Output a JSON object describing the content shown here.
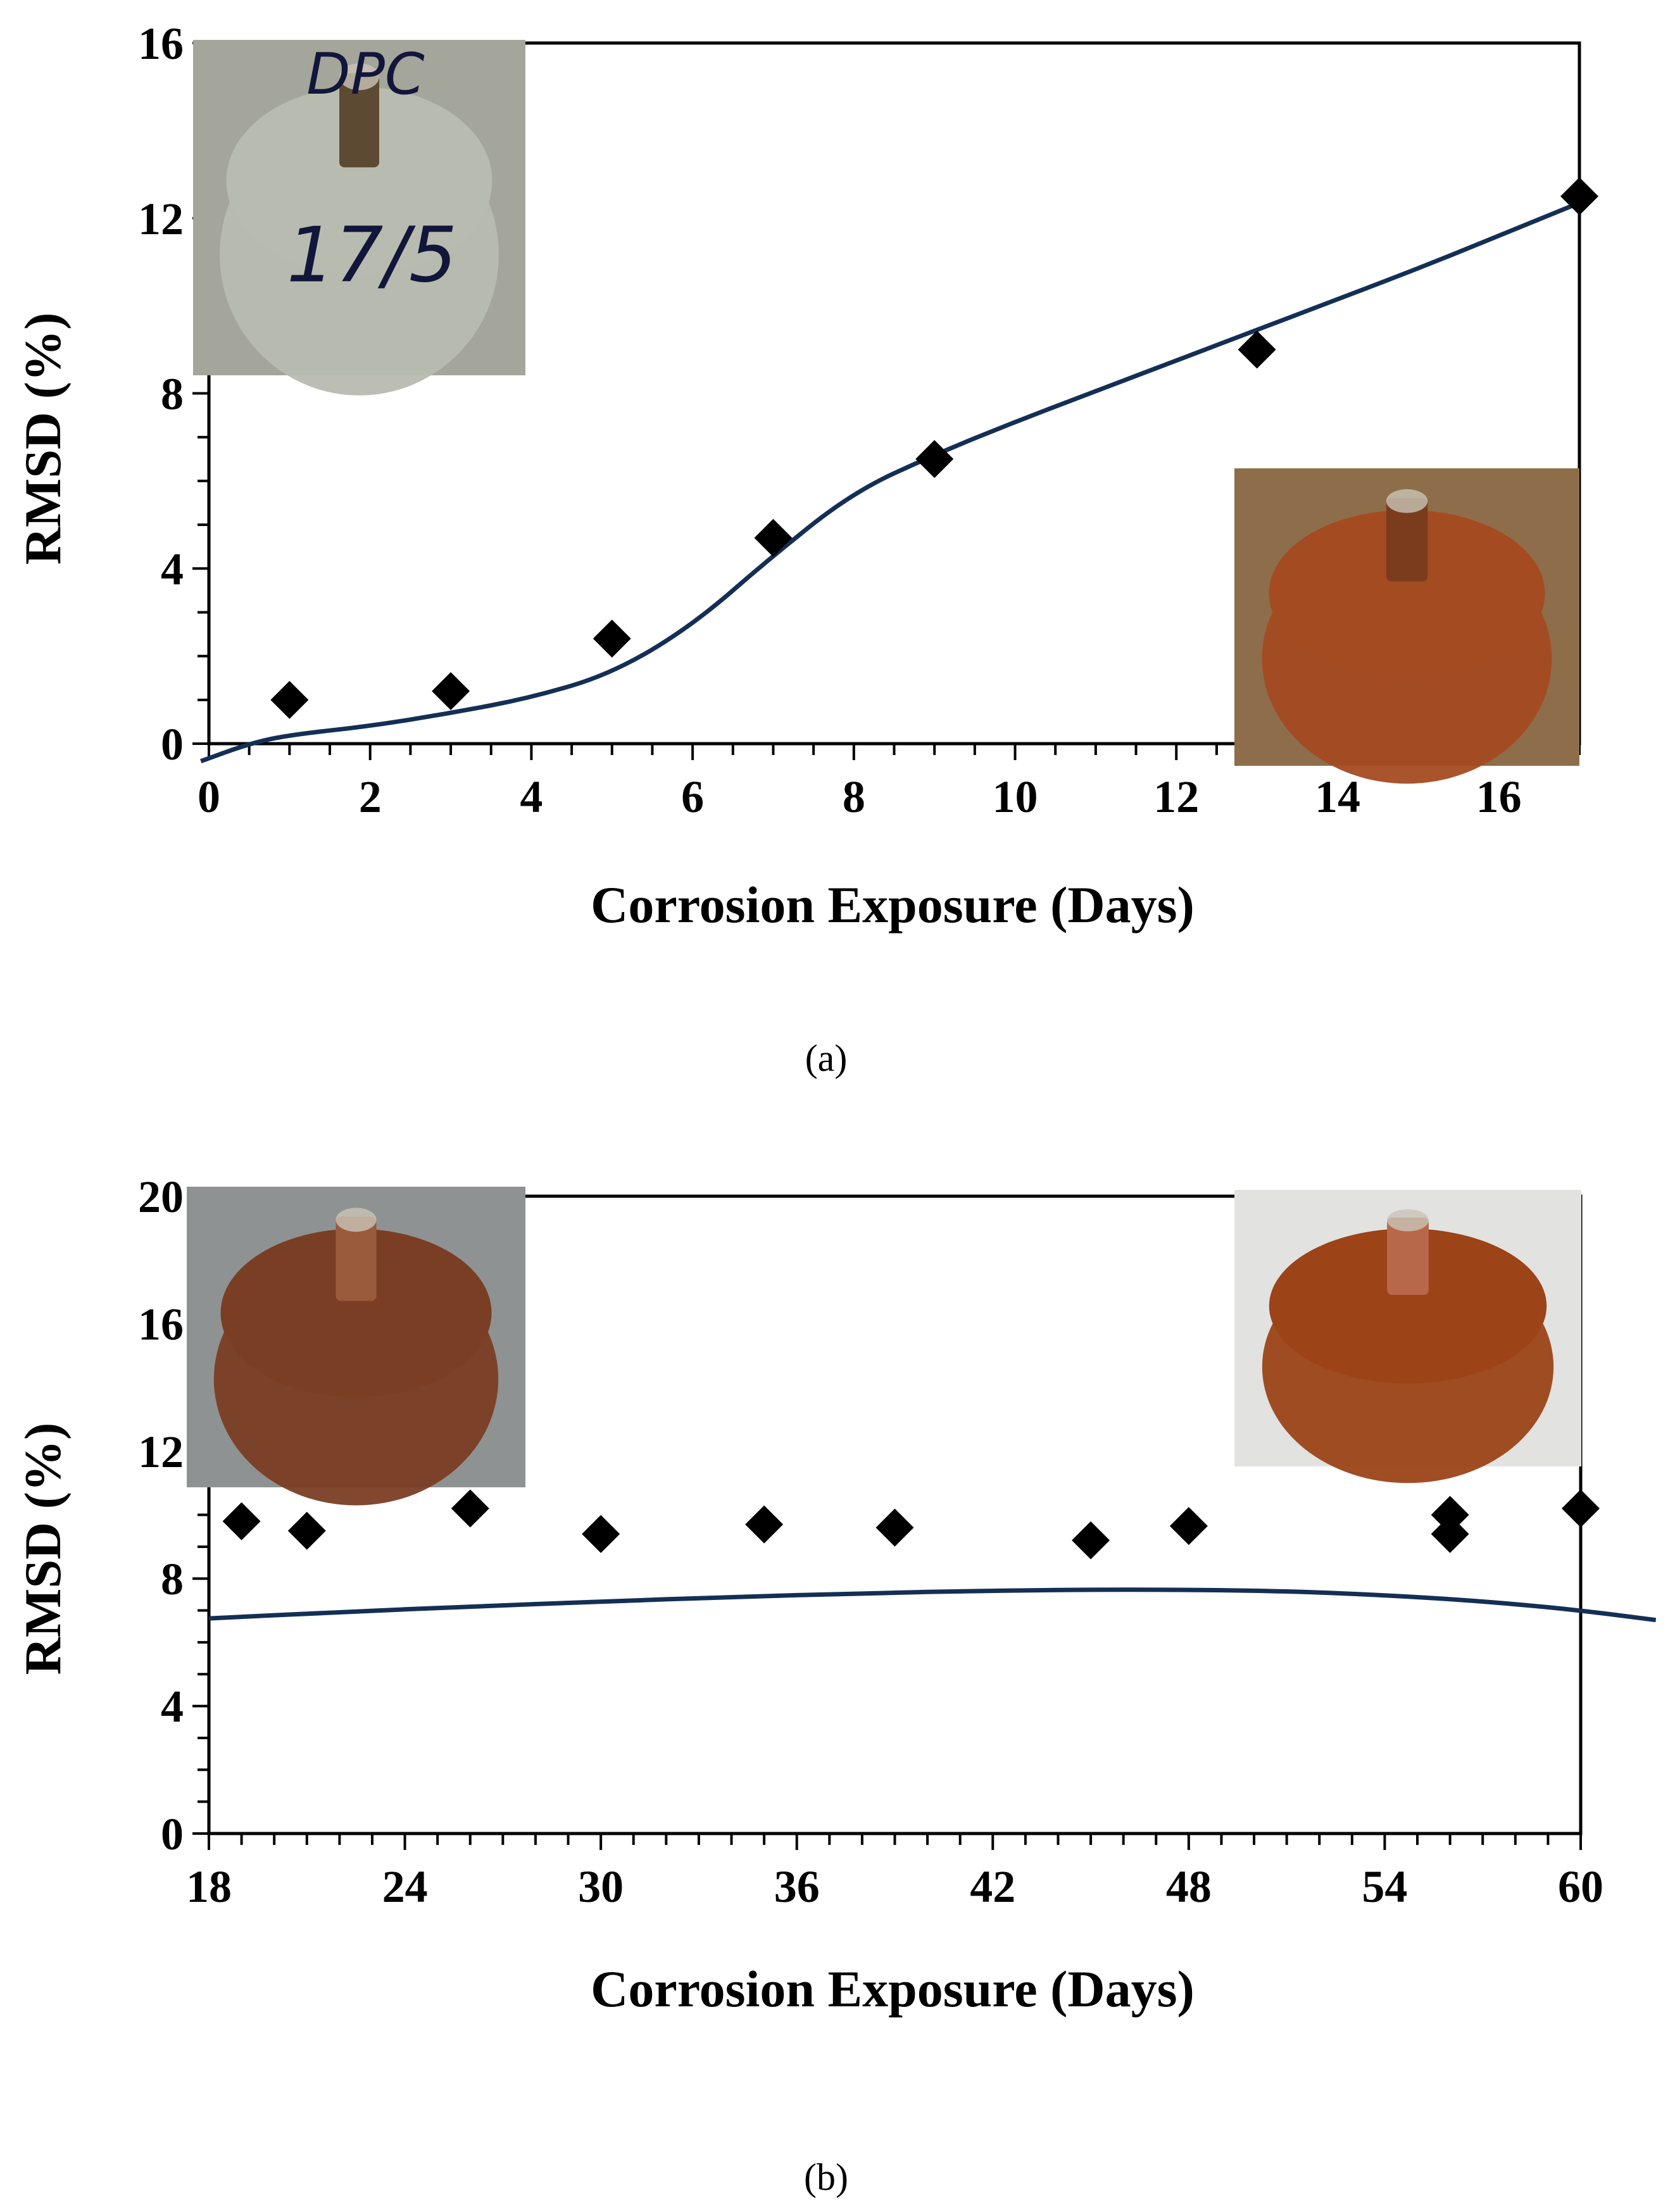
{
  "chart_data": [
    {
      "id": "a",
      "type": "scatter",
      "caption": "(a)",
      "xlabel": "Corrosion Exposure (Days)",
      "ylabel": "RMSD (%)",
      "xlim": [
        0,
        17
      ],
      "ylim": [
        0,
        16
      ],
      "xticks": [
        0,
        2,
        4,
        6,
        8,
        10,
        12,
        14,
        16
      ],
      "yticks": [
        0,
        4,
        8,
        12,
        16
      ],
      "x_minor_step": 0.5,
      "y_minor_step": 1,
      "marker_color": "#000000",
      "trend_color": "#142f55",
      "points": [
        {
          "x": 1,
          "y": 1.0
        },
        {
          "x": 3,
          "y": 1.2
        },
        {
          "x": 5,
          "y": 2.4
        },
        {
          "x": 7,
          "y": 4.7
        },
        {
          "x": 9,
          "y": 6.5
        },
        {
          "x": 13,
          "y": 9.0
        },
        {
          "x": 17,
          "y": 12.5
        }
      ],
      "trend": [
        [
          -0.1,
          -0.4
        ],
        [
          0.5,
          0.0
        ],
        [
          1,
          0.2
        ],
        [
          2,
          0.4
        ],
        [
          3,
          0.7
        ],
        [
          4,
          1.05
        ],
        [
          5,
          1.6
        ],
        [
          6,
          2.7
        ],
        [
          7,
          4.3
        ],
        [
          8,
          5.75
        ],
        [
          9,
          6.6
        ],
        [
          10,
          7.35
        ],
        [
          11,
          8.05
        ],
        [
          12,
          8.75
        ],
        [
          13,
          9.45
        ],
        [
          14,
          10.15
        ],
        [
          15,
          10.85
        ],
        [
          16,
          11.6
        ],
        [
          17,
          12.35
        ]
      ],
      "insets": [
        {
          "name": "inset-photo-opc-specimen",
          "label": "DPC 17/5",
          "bg": "#a4a59b",
          "top": "#b8bbb0",
          "bar": "#5d4a32"
        },
        {
          "name": "inset-photo-rusted-specimen",
          "label": "",
          "bg": "#8e6d4a",
          "top": "#a44b22",
          "bar": "#7a3c1c"
        }
      ]
    },
    {
      "id": "b",
      "type": "scatter",
      "caption": "(b)",
      "xlabel": "Corrosion Exposure (Days)",
      "ylabel": "RMSD (%)",
      "xlim": [
        18,
        60
      ],
      "ylim": [
        0,
        20
      ],
      "xticks": [
        18,
        24,
        30,
        36,
        42,
        48,
        54,
        60
      ],
      "yticks": [
        0,
        4,
        8,
        12,
        16,
        20
      ],
      "x_minor_step": 1,
      "y_minor_step": 1,
      "marker_color": "#000000",
      "trend_color": "#142f55",
      "points": [
        {
          "x": 19,
          "y": 9.8
        },
        {
          "x": 21,
          "y": 9.5
        },
        {
          "x": 26,
          "y": 10.2
        },
        {
          "x": 30,
          "y": 9.4
        },
        {
          "x": 35,
          "y": 9.7
        },
        {
          "x": 39,
          "y": 9.6
        },
        {
          "x": 45,
          "y": 9.2
        },
        {
          "x": 48,
          "y": 9.65
        },
        {
          "x": 56,
          "y": 10.0
        },
        {
          "x": 56,
          "y": 9.4
        },
        {
          "x": 60,
          "y": 10.2
        }
      ],
      "trend": [
        [
          18,
          6.75
        ],
        [
          22,
          6.95
        ],
        [
          26,
          7.12
        ],
        [
          30,
          7.28
        ],
        [
          34,
          7.42
        ],
        [
          38,
          7.54
        ],
        [
          42,
          7.62
        ],
        [
          46,
          7.66
        ],
        [
          50,
          7.63
        ],
        [
          53,
          7.53
        ],
        [
          56,
          7.36
        ],
        [
          58,
          7.2
        ],
        [
          60,
          7.0
        ],
        [
          62.3,
          6.7
        ]
      ],
      "insets": [
        {
          "name": "inset-photo-corroded-top",
          "label": "",
          "bg": "#8f9292",
          "top": "#7a3e24",
          "bar": "#9a5a3c"
        },
        {
          "name": "inset-photo-corroded-rebar",
          "label": "",
          "bg": "#e2e2e0",
          "top": "#9c4318",
          "bar": "#b8684a"
        }
      ]
    }
  ]
}
